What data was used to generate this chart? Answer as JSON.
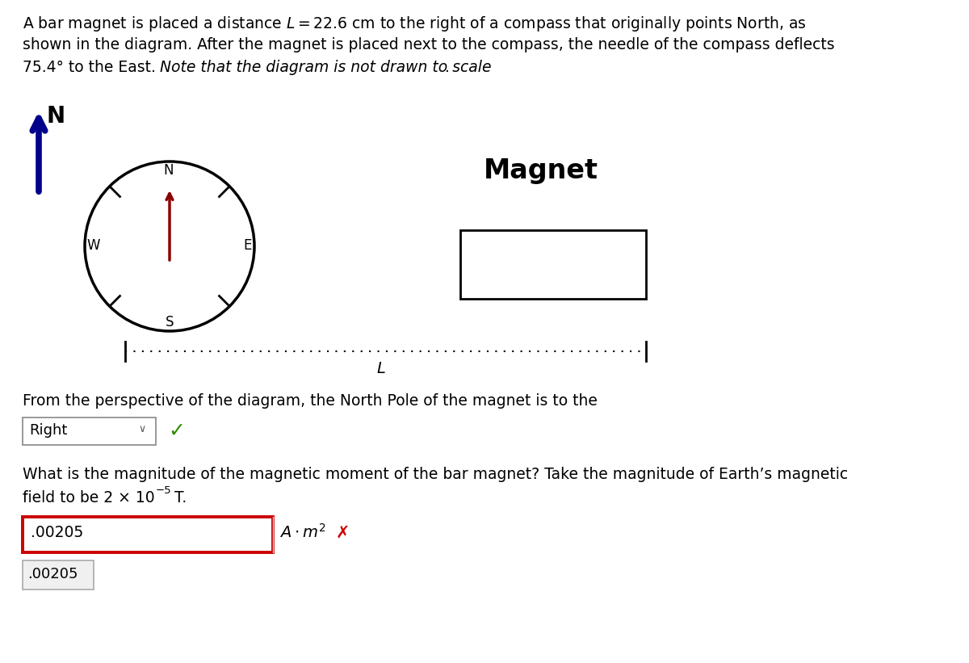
{
  "north_arrow_color": "#00008B",
  "compass_needle_color": "#8B0000",
  "compass_circle_color": "#000000",
  "magnet_box_color": "#000000",
  "magnet_label": "Magnet",
  "dotted_line_color": "#000000",
  "question1_text": "From the perspective of the diagram, the North Pole of the magnet is to the",
  "answer1_text": "Right",
  "checkmark_color": "#2E8B00",
  "answer_box_value": ".00205",
  "answer_box_border_color": "#CC0000",
  "wrong_mark_color": "#CC0000",
  "hint_value": ".00205",
  "bg_color": "#FFFFFF",
  "font_color": "#000000",
  "q2_color": "#000000",
  "fig_width": 12.0,
  "fig_height": 8.21,
  "dpi": 100
}
